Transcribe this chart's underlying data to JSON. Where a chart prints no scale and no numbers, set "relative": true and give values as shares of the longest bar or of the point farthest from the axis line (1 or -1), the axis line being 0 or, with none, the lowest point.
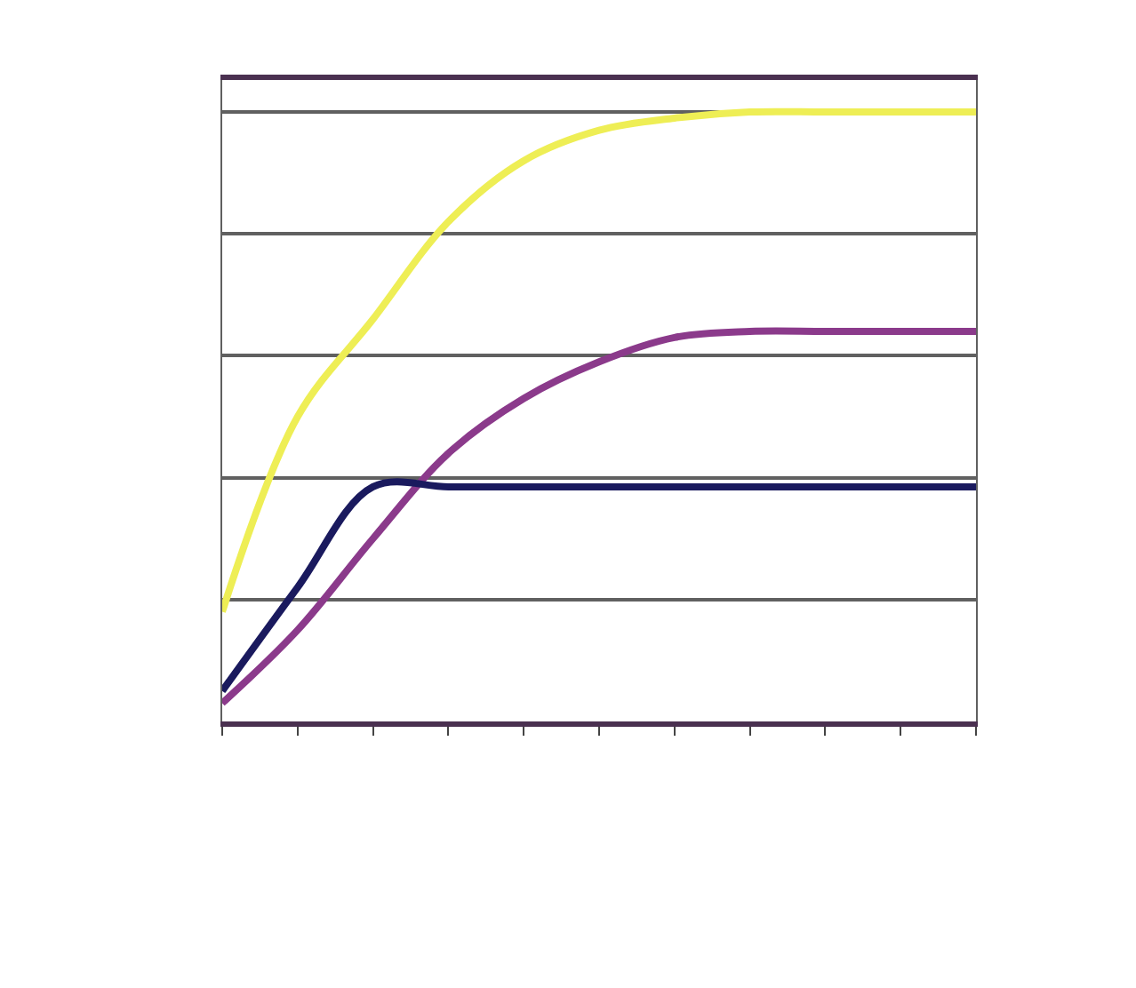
{
  "chart_data": {
    "type": "line",
    "relative": true,
    "grid": "y",
    "legend": false,
    "marker": "none",
    "line_style": "solid",
    "categories": [
      null,
      null,
      null,
      null,
      null,
      null,
      null,
      null,
      null,
      null,
      null
    ],
    "series": [
      {
        "color": "#eeee55",
        "values": [
          0.18,
          0.5,
          0.66,
          0.82,
          0.92,
          0.97,
          0.99,
          1,
          1,
          1,
          1
        ]
      },
      {
        "color": "#8b3a8b",
        "values": [
          0.03,
          0.15,
          0.3,
          0.44,
          0.53,
          0.59,
          0.63,
          0.64,
          0.64,
          0.64,
          0.64
        ]
      },
      {
        "color": "#1a1a5e",
        "values": [
          0.05,
          0.22,
          0.385,
          0.385,
          0.385,
          0.385,
          0.385,
          0.385,
          0.385,
          0.385,
          0.385
        ]
      }
    ]
  }
}
